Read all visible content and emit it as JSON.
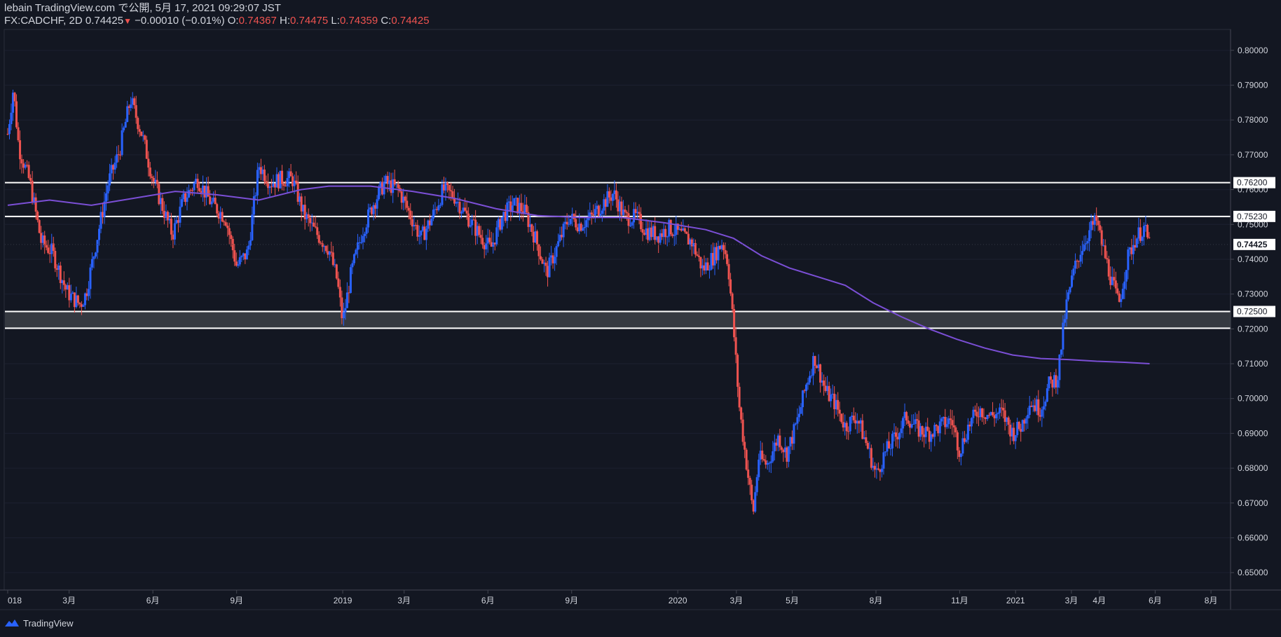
{
  "header": {
    "published": "lebain TradingView.com で公開, 5月 17, 2021 09:29:07 JST",
    "symbol": "FX:CADCHF, 2D",
    "last": "0.74425",
    "change": "−0.00010 (−0.01%)",
    "o_label": "O:",
    "o_value": "0.74367",
    "h_label": "H:",
    "h_value": "0.74475",
    "l_label": "L:",
    "l_value": "0.74359",
    "c_label": "C:",
    "c_value": "0.74425"
  },
  "footer": {
    "brand": "TradingView"
  },
  "colors": {
    "background": "#131722",
    "up": "#2962ff",
    "down": "#ef5350",
    "ma": "#7b4fd6",
    "level_line": "#ffffff",
    "zone": "#3a3d45",
    "text": "#d1d4dc"
  },
  "chart_data": {
    "type": "candlestick",
    "symbol": "FX:CADCHF",
    "timeframe": "2D",
    "ylim": [
      0.645,
      0.806
    ],
    "y_ticks": [
      "0.80000",
      "0.79000",
      "0.78000",
      "0.77000",
      "0.76000",
      "0.75000",
      "0.74000",
      "0.73000",
      "0.72000",
      "0.71000",
      "0.70000",
      "0.69000",
      "0.68000",
      "0.67000",
      "0.66000",
      "0.65000"
    ],
    "x_ticks": [
      {
        "t": 0.0,
        "label": "018"
      },
      {
        "t": 2.2,
        "label": "3月"
      },
      {
        "t": 5.2,
        "label": "6月"
      },
      {
        "t": 8.2,
        "label": "9月"
      },
      {
        "t": 12.0,
        "label": "2019"
      },
      {
        "t": 14.2,
        "label": "3月"
      },
      {
        "t": 17.2,
        "label": "6月"
      },
      {
        "t": 20.2,
        "label": "9月"
      },
      {
        "t": 24.0,
        "label": "2020"
      },
      {
        "t": 26.1,
        "label": "3月"
      },
      {
        "t": 28.1,
        "label": "5月"
      },
      {
        "t": 31.1,
        "label": "8月"
      },
      {
        "t": 34.1,
        "label": "11月"
      },
      {
        "t": 36.1,
        "label": "2021"
      },
      {
        "t": 38.1,
        "label": "3月"
      },
      {
        "t": 39.1,
        "label": "4月"
      },
      {
        "t": 41.1,
        "label": "6月"
      },
      {
        "t": 43.1,
        "label": "8月"
      }
    ],
    "x_range": [
      -0.1,
      43.8
    ],
    "price_path": [
      [
        0.0,
        0.776
      ],
      [
        0.2,
        0.789
      ],
      [
        0.4,
        0.772
      ],
      [
        0.8,
        0.762
      ],
      [
        1.2,
        0.745
      ],
      [
        1.6,
        0.742
      ],
      [
        2.1,
        0.731
      ],
      [
        2.3,
        0.729
      ],
      [
        2.6,
        0.727
      ],
      [
        2.8,
        0.73
      ],
      [
        3.2,
        0.746
      ],
      [
        3.6,
        0.762
      ],
      [
        4.0,
        0.771
      ],
      [
        4.4,
        0.786
      ],
      [
        4.8,
        0.776
      ],
      [
        5.2,
        0.763
      ],
      [
        5.5,
        0.756
      ],
      [
        5.9,
        0.747
      ],
      [
        6.3,
        0.757
      ],
      [
        6.8,
        0.763
      ],
      [
        7.3,
        0.756
      ],
      [
        7.8,
        0.752
      ],
      [
        8.2,
        0.738
      ],
      [
        8.6,
        0.742
      ],
      [
        9.0,
        0.767
      ],
      [
        9.4,
        0.762
      ],
      [
        9.8,
        0.763
      ],
      [
        10.2,
        0.763
      ],
      [
        10.6,
        0.753
      ],
      [
        11.0,
        0.748
      ],
      [
        11.5,
        0.743
      ],
      [
        11.8,
        0.734
      ],
      [
        12.0,
        0.722
      ],
      [
        12.3,
        0.736
      ],
      [
        12.7,
        0.748
      ],
      [
        13.1,
        0.756
      ],
      [
        13.5,
        0.762
      ],
      [
        14.0,
        0.76
      ],
      [
        14.4,
        0.753
      ],
      [
        14.8,
        0.746
      ],
      [
        15.2,
        0.752
      ],
      [
        15.6,
        0.76
      ],
      [
        16.0,
        0.758
      ],
      [
        16.4,
        0.753
      ],
      [
        16.9,
        0.747
      ],
      [
        17.3,
        0.743
      ],
      [
        17.7,
        0.752
      ],
      [
        18.1,
        0.756
      ],
      [
        18.5,
        0.754
      ],
      [
        18.9,
        0.746
      ],
      [
        19.3,
        0.736
      ],
      [
        19.7,
        0.744
      ],
      [
        20.1,
        0.752
      ],
      [
        20.5,
        0.75
      ],
      [
        20.9,
        0.752
      ],
      [
        21.3,
        0.756
      ],
      [
        21.7,
        0.759
      ],
      [
        22.1,
        0.752
      ],
      [
        22.5,
        0.752
      ],
      [
        22.9,
        0.748
      ],
      [
        23.3,
        0.747
      ],
      [
        23.7,
        0.749
      ],
      [
        24.1,
        0.747
      ],
      [
        24.5,
        0.745
      ],
      [
        24.9,
        0.737
      ],
      [
        25.3,
        0.741
      ],
      [
        25.6,
        0.745
      ],
      [
        25.8,
        0.739
      ],
      [
        26.0,
        0.72
      ],
      [
        26.2,
        0.698
      ],
      [
        26.4,
        0.685
      ],
      [
        26.7,
        0.667
      ],
      [
        26.9,
        0.683
      ],
      [
        27.2,
        0.681
      ],
      [
        27.6,
        0.689
      ],
      [
        27.9,
        0.684
      ],
      [
        28.3,
        0.694
      ],
      [
        28.6,
        0.704
      ],
      [
        28.9,
        0.712
      ],
      [
        29.3,
        0.702
      ],
      [
        29.6,
        0.699
      ],
      [
        30.0,
        0.692
      ],
      [
        30.4,
        0.695
      ],
      [
        30.8,
        0.686
      ],
      [
        31.1,
        0.678
      ],
      [
        31.4,
        0.684
      ],
      [
        31.8,
        0.689
      ],
      [
        32.2,
        0.695
      ],
      [
        32.6,
        0.691
      ],
      [
        33.0,
        0.69
      ],
      [
        33.4,
        0.692
      ],
      [
        33.8,
        0.694
      ],
      [
        34.1,
        0.685
      ],
      [
        34.4,
        0.692
      ],
      [
        34.8,
        0.697
      ],
      [
        35.2,
        0.695
      ],
      [
        35.6,
        0.696
      ],
      [
        36.0,
        0.69
      ],
      [
        36.3,
        0.692
      ],
      [
        36.6,
        0.699
      ],
      [
        37.0,
        0.697
      ],
      [
        37.3,
        0.704
      ],
      [
        37.6,
        0.706
      ],
      [
        37.9,
        0.726
      ],
      [
        38.2,
        0.737
      ],
      [
        38.5,
        0.744
      ],
      [
        38.8,
        0.749
      ],
      [
        39.0,
        0.751
      ],
      [
        39.2,
        0.744
      ],
      [
        39.5,
        0.735
      ],
      [
        39.8,
        0.727
      ],
      [
        40.1,
        0.74
      ],
      [
        40.4,
        0.746
      ],
      [
        40.7,
        0.749
      ],
      [
        40.9,
        0.74425
      ]
    ],
    "moving_average": [
      [
        0.0,
        0.7555
      ],
      [
        1.5,
        0.757
      ],
      [
        3.0,
        0.7555
      ],
      [
        4.5,
        0.7575
      ],
      [
        6.0,
        0.7595
      ],
      [
        7.5,
        0.7585
      ],
      [
        9.0,
        0.757
      ],
      [
        10.5,
        0.76
      ],
      [
        11.5,
        0.761
      ],
      [
        13.0,
        0.761
      ],
      [
        14.5,
        0.7595
      ],
      [
        16.0,
        0.7575
      ],
      [
        17.5,
        0.7545
      ],
      [
        19.0,
        0.7525
      ],
      [
        20.5,
        0.752
      ],
      [
        22.0,
        0.752
      ],
      [
        23.5,
        0.7505
      ],
      [
        25.0,
        0.7485
      ],
      [
        26.0,
        0.746
      ],
      [
        27.0,
        0.741
      ],
      [
        28.0,
        0.7375
      ],
      [
        29.0,
        0.735
      ],
      [
        30.0,
        0.7325
      ],
      [
        31.0,
        0.7275
      ],
      [
        32.0,
        0.7235
      ],
      [
        33.0,
        0.72
      ],
      [
        34.0,
        0.717
      ],
      [
        35.0,
        0.7145
      ],
      [
        36.0,
        0.7125
      ],
      [
        37.0,
        0.7115
      ],
      [
        38.0,
        0.7112
      ],
      [
        39.0,
        0.7107
      ],
      [
        40.0,
        0.7104
      ],
      [
        40.9,
        0.71
      ]
    ],
    "levels": [
      {
        "price": 0.762,
        "label": "0.76200"
      },
      {
        "price": 0.7523,
        "label": "0.75230"
      },
      {
        "price": 0.725,
        "label": "0.72500"
      },
      {
        "price": 0.7202,
        "label": ""
      }
    ],
    "zone": [
      0.7202,
      0.7252
    ],
    "last_price": {
      "price": 0.74425,
      "label": "0.74425"
    }
  }
}
